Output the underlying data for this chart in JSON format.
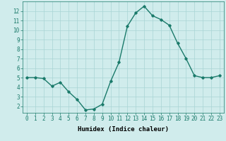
{
  "x": [
    0,
    1,
    2,
    3,
    4,
    5,
    6,
    7,
    8,
    9,
    10,
    11,
    12,
    13,
    14,
    15,
    16,
    17,
    18,
    19,
    20,
    21,
    22,
    23
  ],
  "y": [
    5.0,
    5.0,
    4.9,
    4.1,
    4.5,
    3.5,
    2.7,
    1.6,
    1.7,
    2.2,
    4.6,
    6.6,
    10.4,
    11.8,
    12.5,
    11.5,
    11.1,
    10.5,
    8.6,
    7.0,
    5.2,
    5.0,
    5.0,
    5.2
  ],
  "line_color": "#1a7a6a",
  "marker": "D",
  "marker_size": 1.8,
  "bg_color": "#d0ecec",
  "grid_color": "#a8d4d4",
  "xlabel": "Humidex (Indice chaleur)",
  "xlim": [
    -0.5,
    23.5
  ],
  "ylim": [
    1.3,
    13.0
  ],
  "yticks": [
    2,
    3,
    4,
    5,
    6,
    7,
    8,
    9,
    10,
    11,
    12
  ],
  "xticks": [
    0,
    1,
    2,
    3,
    4,
    5,
    6,
    7,
    8,
    9,
    10,
    11,
    12,
    13,
    14,
    15,
    16,
    17,
    18,
    19,
    20,
    21,
    22,
    23
  ],
  "tick_label_size": 5.5,
  "xlabel_size": 6.5,
  "line_width": 1.0
}
